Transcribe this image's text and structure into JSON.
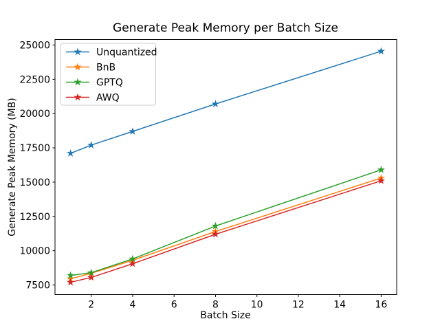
{
  "figure": {
    "background": "#ffffff",
    "border_color": "#000000",
    "text_color": "#000000",
    "legend_border_color": "#cccccc"
  },
  "chart_data": {
    "type": "line",
    "title": "Generate Peak Memory per Batch Size",
    "xlabel": "Batch Size",
    "ylabel": "Generate Peak Memory (MB)",
    "x": [
      1,
      2,
      4,
      8,
      16
    ],
    "series": [
      {
        "name": "Unquantized",
        "color": "#1f77b4",
        "values": [
          17100,
          17700,
          18700,
          20700,
          24550
        ]
      },
      {
        "name": "BnB",
        "color": "#ff7f0e",
        "values": [
          7950,
          8350,
          9300,
          11400,
          15300
        ]
      },
      {
        "name": "GPTQ",
        "color": "#2ca02c",
        "values": [
          8200,
          8400,
          9400,
          11800,
          15900
        ]
      },
      {
        "name": "AWQ",
        "color": "#d62728",
        "values": [
          7700,
          8050,
          9050,
          11200,
          15100
        ]
      }
    ],
    "marker": "star",
    "line_width": 1.5,
    "xticks": [
      2,
      4,
      6,
      8,
      10,
      12,
      14,
      16
    ],
    "yticks": [
      7500,
      10000,
      12500,
      15000,
      17500,
      20000,
      22500,
      25000
    ],
    "xlim": [
      0.25,
      16.75
    ],
    "ylim": [
      6800,
      25400
    ],
    "grid": false,
    "legend_position": "upper-left",
    "legend_labels": [
      "Unquantized",
      "BnB",
      "GPTQ",
      "AWQ"
    ]
  }
}
